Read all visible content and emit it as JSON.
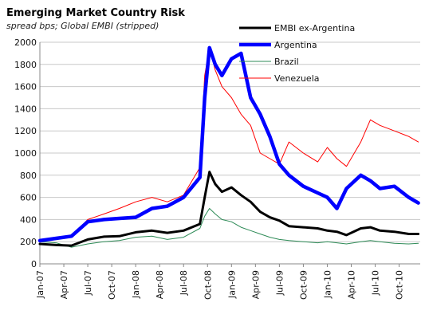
{
  "chart_data": {
    "type": "line",
    "title": "Emerging Market Country Risk",
    "subtitle": "spread bps; Global EMBI (stripped)",
    "xlabel": "",
    "ylabel": "",
    "ylim": [
      0,
      2000
    ],
    "y_ticks": [
      "0",
      "200",
      "400",
      "600",
      "800",
      "1000",
      "1200",
      "1400",
      "1600",
      "1800",
      "2000"
    ],
    "x_ticks": [
      "Jan-07",
      "Apr-07",
      "Jul-07",
      "Oct-07",
      "Jan-08",
      "Apr-08",
      "Jul-08",
      "Oct-08",
      "Jan-09",
      "Apr-09",
      "Jul-09",
      "Oct-09",
      "Jan-10",
      "Apr-10",
      "Jul-10",
      "Oct-10"
    ],
    "grid": "horizontal",
    "legend_position": "top-right",
    "x": [
      2007.0,
      2007.17,
      2007.33,
      2007.5,
      2007.67,
      2007.83,
      2008.0,
      2008.17,
      2008.33,
      2008.5,
      2008.67,
      2008.72,
      2008.77,
      2008.83,
      2008.9,
      2009.0,
      2009.1,
      2009.2,
      2009.3,
      2009.4,
      2009.5,
      2009.6,
      2009.75,
      2009.9,
      2010.0,
      2010.1,
      2010.2,
      2010.35,
      2010.45,
      2010.55,
      2010.7,
      2010.85,
      2010.95
    ],
    "series": [
      {
        "name": "EMBI ex-Argentina",
        "color": "#000000",
        "width": 3,
        "values": [
          180,
          170,
          165,
          220,
          245,
          250,
          285,
          300,
          280,
          300,
          360,
          600,
          830,
          720,
          650,
          690,
          620,
          560,
          470,
          420,
          390,
          340,
          330,
          320,
          300,
          290,
          260,
          320,
          330,
          300,
          290,
          270,
          270
        ]
      },
      {
        "name": "Argentina",
        "color": "#0000ff",
        "width": 4.5,
        "values": [
          210,
          230,
          250,
          380,
          400,
          410,
          420,
          500,
          520,
          600,
          780,
          1500,
          1950,
          1800,
          1700,
          1850,
          1900,
          1500,
          1350,
          1150,
          900,
          800,
          700,
          640,
          600,
          500,
          680,
          800,
          750,
          680,
          700,
          600,
          550
        ]
      },
      {
        "name": "Brazil",
        "color": "#2e8b57",
        "width": 1,
        "values": [
          200,
          190,
          150,
          180,
          200,
          210,
          240,
          250,
          220,
          240,
          320,
          430,
          500,
          450,
          400,
          380,
          330,
          300,
          270,
          240,
          220,
          210,
          200,
          190,
          200,
          190,
          180,
          200,
          210,
          200,
          185,
          180,
          185
        ]
      },
      {
        "name": "Venezuela",
        "color": "#ff0000",
        "width": 1,
        "values": [
          200,
          220,
          250,
          400,
          450,
          500,
          560,
          600,
          560,
          620,
          870,
          1700,
          1950,
          1750,
          1600,
          1500,
          1350,
          1250,
          1000,
          950,
          900,
          1100,
          1000,
          920,
          1050,
          950,
          880,
          1100,
          1300,
          1250,
          1200,
          1150,
          1100
        ]
      }
    ]
  }
}
